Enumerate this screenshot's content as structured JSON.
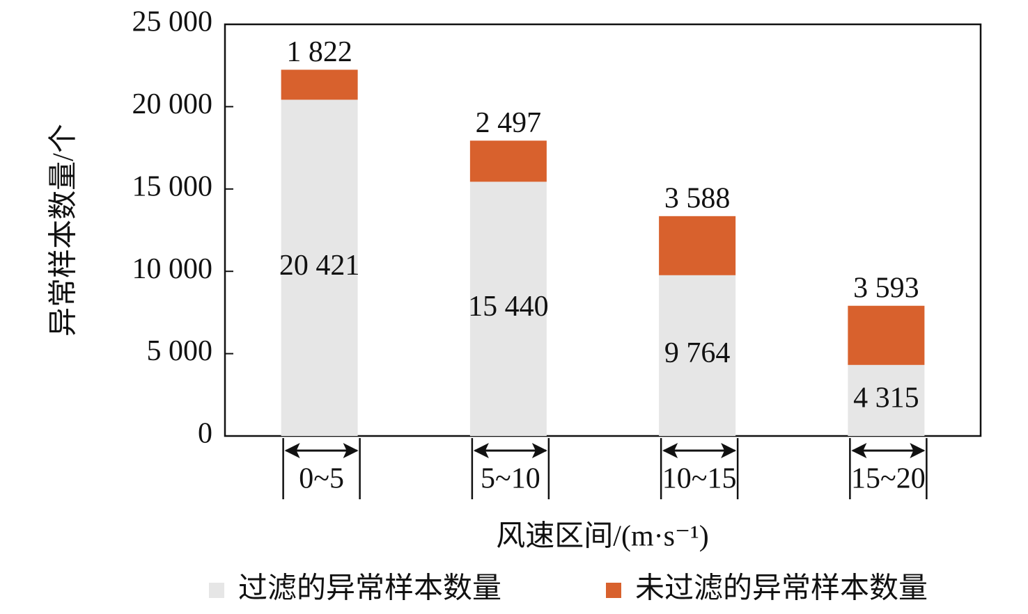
{
  "chart_data": {
    "type": "stacked_bar",
    "y_label": "异常样本数量/个",
    "x_label": "风速区间/(m·s⁻¹)",
    "categories": [
      "0~5",
      "5~10",
      "10~15",
      "15~20"
    ],
    "series": [
      {
        "name": "过滤的异常样本数量",
        "color": "#e6e6e6",
        "values": [
          20421,
          15440,
          9764,
          4315
        ],
        "value_labels": [
          "20 421",
          "15 440",
          "9 764",
          "4 315"
        ]
      },
      {
        "name": "未过滤的异常样本数量",
        "color": "#d8612d",
        "values": [
          1822,
          2497,
          3588,
          3593
        ],
        "value_labels": [
          "1 822",
          "2 497",
          "3 588",
          "3 593"
        ]
      }
    ],
    "ylim": [
      0,
      25000
    ],
    "yticks": [
      0,
      {
        "value": 5000,
        "label": "5 000"
      },
      {
        "value": 10000,
        "label": "10 000"
      },
      {
        "value": 15000,
        "label": "15 000"
      },
      {
        "value": 20000,
        "label": "20 000"
      },
      {
        "value": 25000,
        "label": "25 000"
      }
    ],
    "legend": "bottom"
  }
}
